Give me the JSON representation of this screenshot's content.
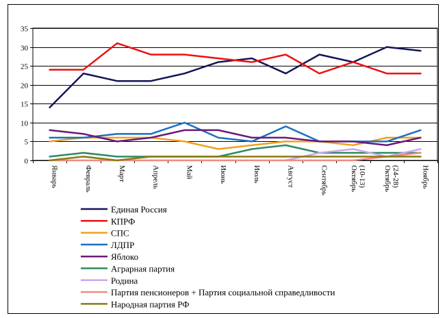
{
  "chart_data": {
    "type": "line",
    "title": "",
    "xlabel": "",
    "ylabel": "",
    "ylim": [
      0,
      35
    ],
    "yticks": [
      0,
      5,
      10,
      15,
      20,
      25,
      30,
      35
    ],
    "grid": "horizontal",
    "legend_position": "bottom",
    "categories": [
      [
        "Январь"
      ],
      [
        "Февраль"
      ],
      [
        "Март"
      ],
      [
        "Апрель"
      ],
      [
        "Май"
      ],
      [
        "Июнь"
      ],
      [
        "Июль"
      ],
      [
        "Август"
      ],
      [
        "Сентябрь"
      ],
      [
        "Октябрь",
        "(10-13)"
      ],
      [
        "Октябрь",
        "(24-28)"
      ],
      [
        "Ноябрь"
      ]
    ],
    "series": [
      {
        "name": "Единая Россия",
        "color": "#14145a",
        "values": [
          14,
          23,
          21,
          21,
          23,
          26,
          27,
          23,
          28,
          26,
          30,
          29
        ]
      },
      {
        "name": "КПРФ",
        "color": "#ee1111",
        "values": [
          24,
          24,
          31,
          28,
          28,
          27,
          26,
          28,
          23,
          26,
          23,
          23
        ]
      },
      {
        "name": "СПС",
        "color": "#f0a020",
        "values": [
          5,
          6,
          6,
          6,
          5,
          3,
          4,
          5,
          5,
          4,
          6,
          6
        ]
      },
      {
        "name": "ЛДПР",
        "color": "#1a6fc0",
        "values": [
          6,
          6,
          7,
          7,
          10,
          6,
          5,
          9,
          5,
          5,
          5,
          8
        ]
      },
      {
        "name": "Яблоко",
        "color": "#6a1a7a",
        "values": [
          8,
          7,
          5,
          6,
          8,
          8,
          6,
          6,
          5,
          5,
          4,
          6
        ]
      },
      {
        "name": "Аграрная партия",
        "color": "#2e8a62",
        "values": [
          1,
          2,
          1,
          1,
          1,
          1,
          3,
          4,
          2,
          2,
          2,
          2
        ]
      },
      {
        "name": "Родина",
        "color": "#c8a6ee",
        "values": [
          null,
          null,
          null,
          null,
          null,
          null,
          null,
          0,
          2,
          3,
          1,
          3
        ]
      },
      {
        "name": "Партия пенсионеров + Партия социальной справедливости",
        "color": "#f08a80",
        "values": [
          0,
          0,
          0,
          0,
          0,
          0,
          0,
          0,
          0,
          0,
          1,
          2
        ]
      },
      {
        "name": "Народная партия РФ",
        "color": "#8a7a10",
        "values": [
          0,
          1,
          0,
          1,
          1,
          1,
          1,
          1,
          1,
          1,
          1,
          1
        ]
      }
    ]
  }
}
